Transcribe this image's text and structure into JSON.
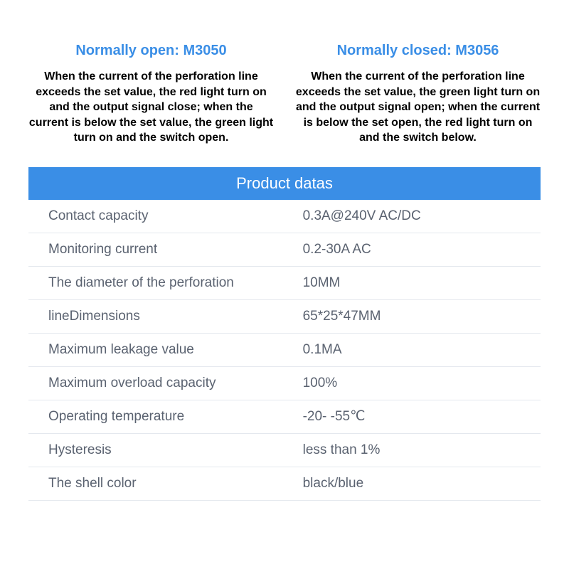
{
  "header": {
    "left": {
      "title": "Normally open: M3050",
      "body": "When the current of the perforation line exceeds the set value, the red light turn on and the output signal close; when the current is below the set value, the green light turn on and the switch open."
    },
    "right": {
      "title": "Normally closed: M3056",
      "body": "When the current of the perforation line exceeds the set value, the green light turn on and the output signal open; when the current is below the set open, the red light turn on and the switch below."
    }
  },
  "table": {
    "title": "Product datas",
    "rows": [
      {
        "label": "Contact capacity",
        "value": "0.3A@240V AC/DC"
      },
      {
        "label": "Monitoring current",
        "value": "0.2-30A AC"
      },
      {
        "label": "The diameter of the perforation",
        "value": "10MM"
      },
      {
        "label": "lineDimensions",
        "value": "65*25*47MM"
      },
      {
        "label": "Maximum leakage value",
        "value": "0.1MA"
      },
      {
        "label": "Maximum overload capacity",
        "value": "100%"
      },
      {
        "label": "Operating temperature",
        "value": "-20- -55℃"
      },
      {
        "label": "Hysteresis",
        "value": "less than 1%"
      },
      {
        "label": "The shell color",
        "value": "black/blue"
      }
    ]
  },
  "style": {
    "accent": "#3a8ee6",
    "text_dark": "#000000",
    "text_muted": "#5a6270",
    "row_border": "#e4e8ee",
    "background": "#ffffff",
    "title_fontsize": 20,
    "body_fontsize": 16,
    "table_title_fontsize": 22,
    "row_fontsize": 19
  }
}
